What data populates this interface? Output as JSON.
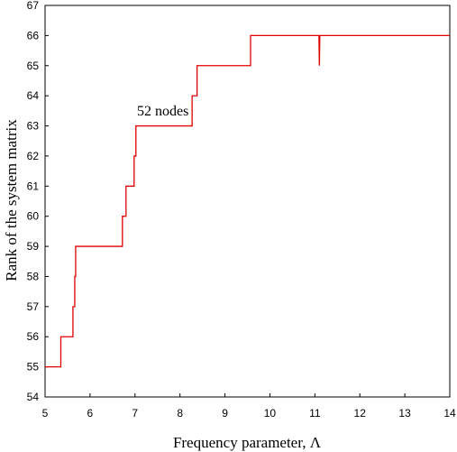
{
  "chart_data": {
    "type": "line",
    "title": "",
    "xlabel": "Frequency parameter, Λ",
    "ylabel": "Rank of  the system matrix",
    "xlim": [
      5,
      14
    ],
    "ylim": [
      54,
      67
    ],
    "xticks": [
      5,
      6,
      7,
      8,
      9,
      10,
      11,
      12,
      13,
      14
    ],
    "yticks": [
      54,
      55,
      56,
      57,
      58,
      59,
      60,
      61,
      62,
      63,
      64,
      65,
      66,
      67
    ],
    "grid": false,
    "legend": "none",
    "annotations": [
      {
        "text": "52 nodes",
        "x": 7.0,
        "y": 63.3
      }
    ],
    "series": [
      {
        "color": "#e00000",
        "step": true,
        "x": [
          5.0,
          5.35,
          5.35,
          5.62,
          5.62,
          5.66,
          5.66,
          5.68,
          5.68,
          6.72,
          6.72,
          6.8,
          6.8,
          6.98,
          6.98,
          7.02,
          7.02,
          8.27,
          8.27,
          8.38,
          8.38,
          9.57,
          9.57,
          11.09,
          11.1,
          11.11,
          14.0
        ],
        "y": [
          55,
          55,
          56,
          56,
          57,
          57,
          58,
          58,
          59,
          59,
          60,
          60,
          61,
          61,
          62,
          62,
          63,
          63,
          64,
          64,
          65,
          65,
          66,
          66,
          65,
          66,
          66
        ]
      }
    ]
  }
}
